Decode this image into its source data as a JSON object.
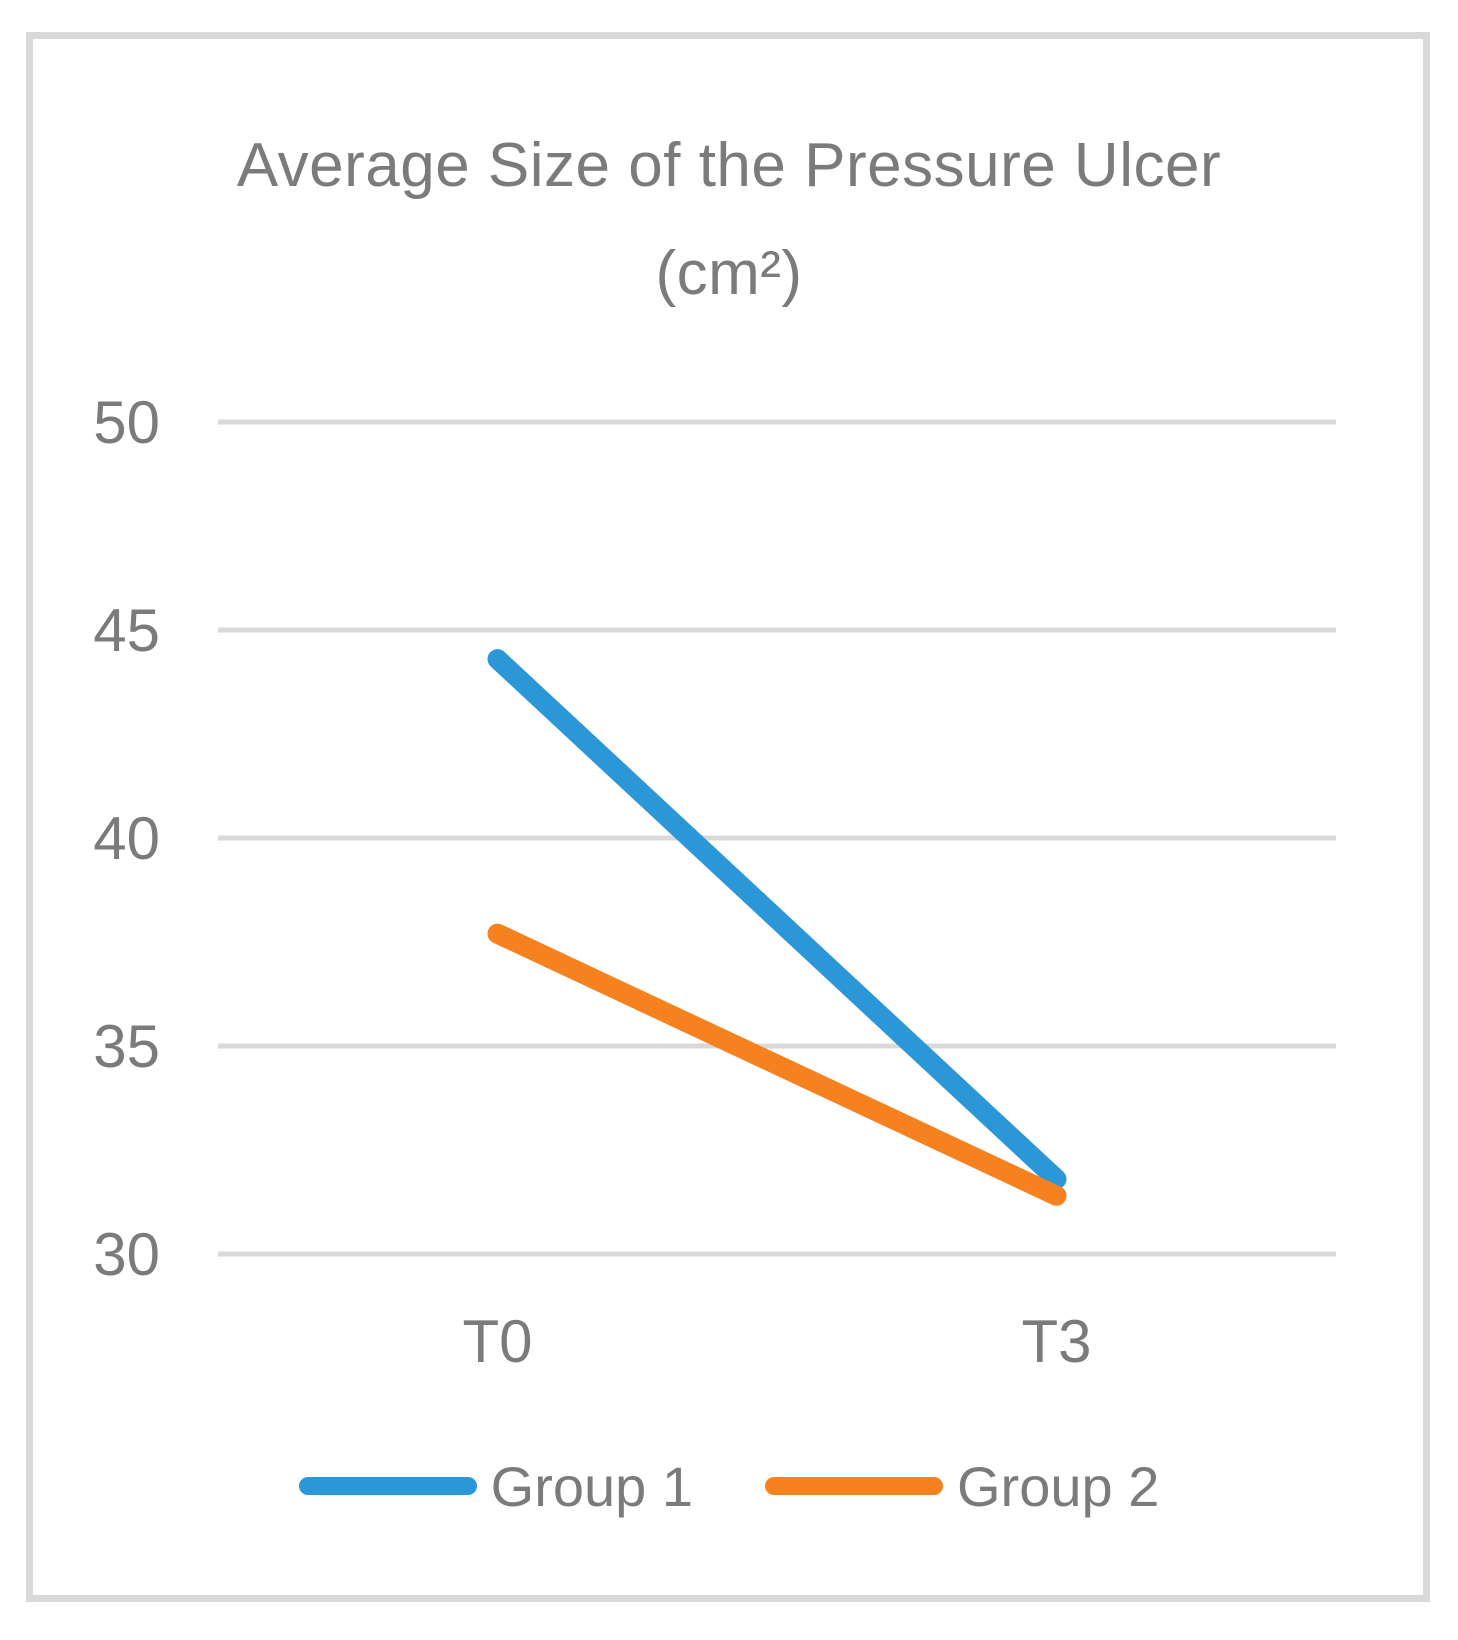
{
  "chart_data": {
    "type": "line",
    "title": "Average Size of the Pressure Ulcer (cm²)",
    "title_lines": [
      "Average Size of the Pressure Ulcer",
      "(cm²)"
    ],
    "categories": [
      "T0",
      "T3"
    ],
    "series": [
      {
        "name": "Group 1",
        "values": [
          44.3,
          31.8
        ],
        "color": "#2C97D6"
      },
      {
        "name": "Group 2",
        "values": [
          37.7,
          31.4
        ],
        "color": "#F5821F"
      }
    ],
    "xlabel": "",
    "ylabel": "",
    "ylim": [
      30,
      50
    ],
    "yticks": [
      30,
      35,
      40,
      45,
      50
    ],
    "grid": true,
    "legend_position": "bottom",
    "colors": {
      "gridline": "#D9D9D9",
      "frame_border": "#D9D9D9",
      "text": "#7B7B7B"
    },
    "line_width": 20
  }
}
